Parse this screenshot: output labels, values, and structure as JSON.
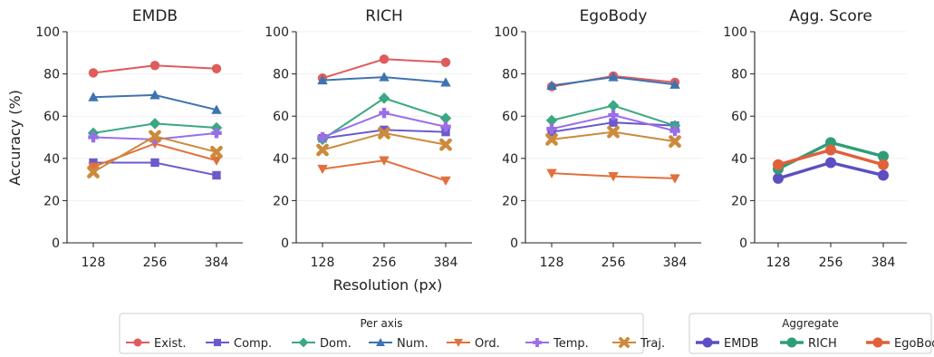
{
  "figure": {
    "ylabel": "Accuracy (%)",
    "xlabel": "Resolution (px)"
  },
  "chart_data": [
    {
      "type": "line",
      "title": "EMDB",
      "x": [
        128,
        256,
        384
      ],
      "xticks": [
        "128",
        "256",
        "384"
      ],
      "ylim": [
        0,
        100
      ],
      "yticks": [
        0,
        20,
        40,
        60,
        80,
        100
      ],
      "grid": true,
      "series": [
        {
          "name": "Exist.",
          "values": [
            80.5,
            84.0,
            82.5
          ],
          "color": "#e05c5c",
          "marker": "circle"
        },
        {
          "name": "Comp.",
          "values": [
            38.0,
            38.0,
            32.0
          ],
          "color": "#6a5acd",
          "marker": "square"
        },
        {
          "name": "Dom.",
          "values": [
            52.0,
            56.5,
            54.5
          ],
          "color": "#3aa882",
          "marker": "diamond"
        },
        {
          "name": "Num.",
          "values": [
            69.0,
            70.0,
            63.0
          ],
          "color": "#3d73b0",
          "marker": "triangle-up"
        },
        {
          "name": "Ord.",
          "values": [
            36.0,
            47.0,
            39.0
          ],
          "color": "#e2703d",
          "marker": "triangle-down"
        },
        {
          "name": "Temp.",
          "values": [
            50.0,
            49.0,
            52.0
          ],
          "color": "#9b6ee8",
          "marker": "plus"
        },
        {
          "name": "Traj.",
          "values": [
            33.5,
            50.5,
            43.0
          ],
          "color": "#cc8a3c",
          "marker": "x"
        }
      ]
    },
    {
      "type": "line",
      "title": "RICH",
      "x": [
        128,
        256,
        384
      ],
      "xticks": [
        "128",
        "256",
        "384"
      ],
      "ylim": [
        0,
        100
      ],
      "yticks": [
        0,
        20,
        40,
        60,
        80,
        100
      ],
      "grid": true,
      "series": [
        {
          "name": "Exist.",
          "values": [
            78.0,
            87.0,
            85.5
          ],
          "color": "#e05c5c",
          "marker": "circle"
        },
        {
          "name": "Comp.",
          "values": [
            49.5,
            53.5,
            52.5
          ],
          "color": "#6a5acd",
          "marker": "square"
        },
        {
          "name": "Dom.",
          "values": [
            49.0,
            68.5,
            59.0
          ],
          "color": "#3aa882",
          "marker": "diamond"
        },
        {
          "name": "Num.",
          "values": [
            77.0,
            78.5,
            76.0
          ],
          "color": "#3d73b0",
          "marker": "triangle-up"
        },
        {
          "name": "Ord.",
          "values": [
            35.0,
            39.0,
            29.5
          ],
          "color": "#e2703d",
          "marker": "triangle-down"
        },
        {
          "name": "Temp.",
          "values": [
            50.0,
            61.5,
            55.0
          ],
          "color": "#9b6ee8",
          "marker": "plus"
        },
        {
          "name": "Traj.",
          "values": [
            44.0,
            52.0,
            46.5
          ],
          "color": "#cc8a3c",
          "marker": "x"
        }
      ]
    },
    {
      "type": "line",
      "title": "EgoBody",
      "x": [
        128,
        256,
        384
      ],
      "xticks": [
        "128",
        "256",
        "384"
      ],
      "ylim": [
        0,
        100
      ],
      "yticks": [
        0,
        20,
        40,
        60,
        80,
        100
      ],
      "grid": true,
      "series": [
        {
          "name": "Exist.",
          "values": [
            74.0,
            79.0,
            76.0
          ],
          "color": "#e05c5c",
          "marker": "circle"
        },
        {
          "name": "Comp.",
          "values": [
            52.5,
            57.0,
            55.5
          ],
          "color": "#6a5acd",
          "marker": "square"
        },
        {
          "name": "Dom.",
          "values": [
            58.0,
            65.0,
            55.5
          ],
          "color": "#3aa882",
          "marker": "diamond"
        },
        {
          "name": "Num.",
          "values": [
            74.5,
            78.5,
            75.0
          ],
          "color": "#3d73b0",
          "marker": "triangle-up"
        },
        {
          "name": "Ord.",
          "values": [
            33.0,
            31.5,
            30.5
          ],
          "color": "#e2703d",
          "marker": "triangle-down"
        },
        {
          "name": "Temp.",
          "values": [
            54.0,
            60.5,
            53.0
          ],
          "color": "#9b6ee8",
          "marker": "plus"
        },
        {
          "name": "Traj.",
          "values": [
            49.0,
            52.5,
            48.0
          ],
          "color": "#cc8a3c",
          "marker": "x"
        }
      ]
    },
    {
      "type": "line",
      "title": "Agg. Score",
      "x": [
        128,
        256,
        384
      ],
      "xticks": [
        "128",
        "256",
        "384"
      ],
      "ylim": [
        0,
        100
      ],
      "yticks": [
        0,
        20,
        40,
        60,
        80,
        100
      ],
      "grid": true,
      "series": [
        {
          "name": "EMDB",
          "values": [
            30.5,
            38.0,
            32.0
          ],
          "color": "#5b4fc2",
          "marker": "circle"
        },
        {
          "name": "RICH",
          "values": [
            35.0,
            47.5,
            41.0
          ],
          "color": "#2e9e78",
          "marker": "circle"
        },
        {
          "name": "EgoBody",
          "values": [
            37.0,
            44.0,
            37.0
          ],
          "color": "#e0603a",
          "marker": "circle"
        }
      ]
    }
  ],
  "legends": [
    {
      "title": "Per axis",
      "source_chart": 0
    },
    {
      "title": "Aggregate",
      "source_chart": 3
    }
  ]
}
